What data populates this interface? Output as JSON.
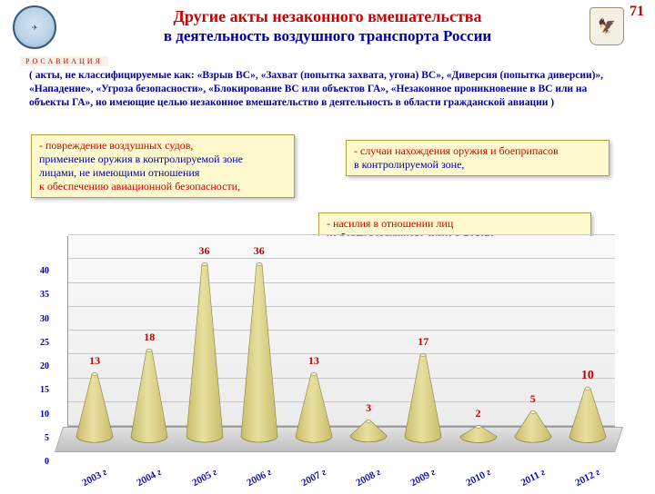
{
  "page_number": "71",
  "title_line1": "Другие акты незаконного вмешательства",
  "title_line2": "в деятельность воздушного транспорта России",
  "ros_label": "РОСАВИАЦИЯ",
  "definition": "( акты,  не классифицируемые как:  «Взрыв ВС»,   «Захват (попытка захвата,  угона) ВС»,  «Диверсия (попытка диверсии)»,  «Нападение»,  «Угроза безопасности»,  «Блокирование ВС или объектов ГА»,  «Незаконное проникновение в ВС  или  на объекты ГА»,    но  имеющие  целью   незаконное  вмешательство  в  деятельность  в  области  гражданской  авиации )",
  "callout1": {
    "red1": "- повреждение воздушных судов,",
    "blue1": "применение  оружия  в контролируемой зоне",
    "blue2": "лицами,  не имеющими отношения",
    "red2": "к обеспечению авиационной безопасности,"
  },
  "callout2": {
    "red": "- случаи нахождения оружия и боеприпасов",
    "blue": "в контролируемой зоне,"
  },
  "callout3": {
    "red": "- насилия в отношении лиц",
    "blue": "на борту воздушного судна в полете\nили  на объектах гражданской авиации."
  },
  "chart": {
    "type": "cone",
    "ylim": [
      0,
      40
    ],
    "ytick_step": 5,
    "categories": [
      "2003 г",
      "2004 г",
      "2005 г",
      "2006 г",
      "2007 г",
      "2008 г",
      "2009 г",
      "2010 г",
      "2011 г",
      "2012 г"
    ],
    "values": [
      13,
      18,
      36,
      36,
      13,
      3,
      17,
      2,
      5,
      10
    ],
    "value_labels": [
      "13",
      "18",
      "36",
      "36",
      "13",
      "3",
      "17",
      "2",
      "5",
      "10"
    ],
    "highlight_index": 9,
    "cone_fill_light": "#e8e0a0",
    "cone_fill_dark": "#c8bc6a",
    "cone_top": "#f4eec0",
    "cone_stroke": "#8a8040",
    "label_color": "#c00000",
    "axis_color": "#0000a0",
    "grid_color": "#c8c8c8",
    "floor_color": "#d0d0d0",
    "back_color": "#f0f0f0"
  }
}
